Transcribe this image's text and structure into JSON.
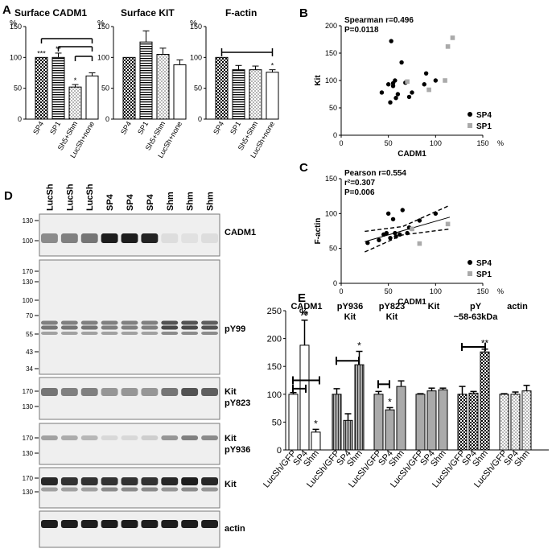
{
  "panel_letters": {
    "a": "A",
    "b": "B",
    "c": "C",
    "d": "D",
    "e": "E"
  },
  "panel_a": {
    "percent_label": "%",
    "yticks": [
      "0",
      "50",
      "100",
      "150"
    ],
    "categories_main": [
      "SP4",
      "SP1",
      "Sh5+Shm",
      "LucSh+none"
    ],
    "categories_factin": [
      "SP4",
      "SP1",
      "Sh5+Shm",
      "LucSh+none"
    ]
  },
  "panel_b": {
    "annotation": [
      "Spearman r=0.496",
      "P=0.0118"
    ],
    "ylabel": "Kit",
    "xlabel": "CADM1",
    "x_unit": "%",
    "ticks": [
      "0",
      "50",
      "100",
      "150"
    ]
  },
  "panel_c": {
    "annotation": [
      "Pearson r=0.554",
      "r²=0.307",
      "P=0.006"
    ],
    "ylabel": "F-actin",
    "xlabel": "CADM1",
    "x_unit": "%",
    "ticks": [
      "0",
      "50",
      "100",
      "150"
    ]
  },
  "legend": {
    "sp4": "SP4",
    "sp1": "SP1"
  },
  "blot": {
    "lanes": [
      "LucSh",
      "LucSh",
      "LucSh",
      "SP4",
      "SP4",
      "SP4",
      "Shm",
      "Shm",
      "Shm"
    ],
    "panels": [
      {
        "labels": [
          "CADM1"
        ],
        "markers": [
          "130",
          "100"
        ]
      },
      {
        "labels": [
          "pY99"
        ],
        "markers": [
          "170",
          "130",
          "100",
          "70",
          "55",
          "43",
          "34"
        ]
      },
      {
        "labels": [
          "Kit",
          "pY823"
        ],
        "markers": [
          "170",
          "130"
        ]
      },
      {
        "labels": [
          "Kit",
          "pY936"
        ],
        "markers": [
          "170",
          "130"
        ]
      },
      {
        "labels": [
          "Kit"
        ],
        "markers": [
          "170",
          "130"
        ]
      },
      {
        "labels": [
          "actin"
        ],
        "markers": []
      }
    ]
  },
  "panel_e": {
    "percent_label": "%",
    "yticks": [
      "0",
      "50",
      "100",
      "150",
      "200",
      "250"
    ],
    "group_titles": [
      [
        "CADM1"
      ],
      [
        "pY936",
        "Kit"
      ],
      [
        "pY823",
        "Kit"
      ],
      [
        "Kit"
      ],
      [
        "pY",
        "~58-63kDa"
      ],
      [
        "actin"
      ]
    ],
    "categories": [
      "LucSh/GFP",
      "SP4",
      "Shm"
    ]
  },
  "significance": {
    "one": "*",
    "two": "**",
    "three": "***"
  },
  "colors": {
    "sp4_point": "#000000",
    "sp1_point": "#aaaaaa",
    "bar_outline": "#000000",
    "solid_gray": "#aaaaaa"
  },
  "chart_data": [
    {
      "type": "bar",
      "title": "Surface CADM1",
      "ylabel": "%",
      "ylim": [
        0,
        150
      ],
      "categories": [
        "SP4",
        "SP1",
        "Sh5+Shm",
        "LucSh+none"
      ],
      "values": [
        100,
        100,
        52,
        70
      ],
      "errors": [
        0,
        7,
        4,
        5
      ],
      "significance": [
        "***",
        "**",
        "*",
        ""
      ]
    },
    {
      "type": "bar",
      "title": "Surface KIT",
      "ylabel": "%",
      "ylim": [
        0,
        150
      ],
      "categories": [
        "SP4",
        "SP1",
        "Sh5+Shm",
        "LucSh+none"
      ],
      "values": [
        100,
        125,
        105,
        88
      ],
      "errors": [
        0,
        18,
        10,
        8
      ],
      "significance": [
        "",
        "",
        "",
        ""
      ]
    },
    {
      "type": "bar",
      "title": "F-actin",
      "ylabel": "%",
      "ylim": [
        0,
        150
      ],
      "categories": [
        "SP4",
        "SP1",
        "Sh5+Shm",
        "LucSh+none"
      ],
      "values": [
        100,
        80,
        80,
        76
      ],
      "errors": [
        0,
        7,
        6,
        4
      ],
      "significance": [
        "",
        "",
        "",
        "*"
      ]
    },
    {
      "type": "scatter",
      "xlabel": "CADM1",
      "ylabel": "Kit",
      "xlim": [
        0,
        150
      ],
      "ylim": [
        0,
        200
      ],
      "series": [
        {
          "name": "SP4",
          "x": [
            43,
            50,
            52,
            53,
            55,
            55,
            57,
            58,
            60,
            64,
            68,
            72,
            75,
            88,
            90,
            100
          ],
          "y": [
            78,
            93,
            60,
            172,
            90,
            95,
            100,
            68,
            75,
            133,
            96,
            70,
            78,
            93,
            113,
            100
          ]
        },
        {
          "name": "SP1",
          "x": [
            70,
            93,
            110,
            113,
            118
          ],
          "y": [
            98,
            83,
            100,
            162,
            178
          ]
        }
      ]
    },
    {
      "type": "scatter",
      "xlabel": "CADM1",
      "ylabel": "F-actin",
      "xlim": [
        0,
        150
      ],
      "ylim": [
        0,
        150
      ],
      "series": [
        {
          "name": "SP4",
          "x": [
            28,
            40,
            45,
            48,
            50,
            52,
            55,
            57,
            58,
            62,
            65,
            70,
            72,
            75,
            83,
            100
          ],
          "y": [
            58,
            62,
            70,
            72,
            100,
            65,
            92,
            72,
            67,
            70,
            105,
            72,
            80,
            78,
            90,
            100
          ]
        },
        {
          "name": "SP1",
          "x": [
            75,
            83,
            113
          ],
          "y": [
            78,
            57,
            85
          ]
        }
      ],
      "regression": {
        "slope": 0.39,
        "intercept": 50
      }
    },
    {
      "type": "bar",
      "ylabel": "%",
      "ylim": [
        0,
        250
      ],
      "groups": [
        "CADM1",
        "pY936 Kit",
        "pY823 Kit",
        "Kit",
        "pY ~58-63kDa",
        "actin"
      ],
      "categories": [
        "LucSh/GFP",
        "SP4",
        "Shm"
      ],
      "values": [
        [
          100,
          188,
          32
        ],
        [
          100,
          53,
          153
        ],
        [
          100,
          72,
          114
        ],
        [
          100,
          106,
          108
        ],
        [
          100,
          102,
          176
        ],
        [
          100,
          100,
          106
        ]
      ],
      "errors": [
        [
          3,
          45,
          5
        ],
        [
          10,
          12,
          24
        ],
        [
          5,
          4,
          10
        ],
        [
          1,
          5,
          3
        ],
        [
          14,
          3,
          5
        ],
        [
          1,
          4,
          10
        ]
      ],
      "significance": [
        [
          "",
          "**",
          "*"
        ],
        [
          "",
          "",
          "*"
        ],
        [
          "",
          "*",
          ""
        ],
        [
          "",
          "",
          ""
        ],
        [
          "",
          "",
          "**"
        ],
        [
          "",
          "",
          ""
        ]
      ]
    }
  ]
}
